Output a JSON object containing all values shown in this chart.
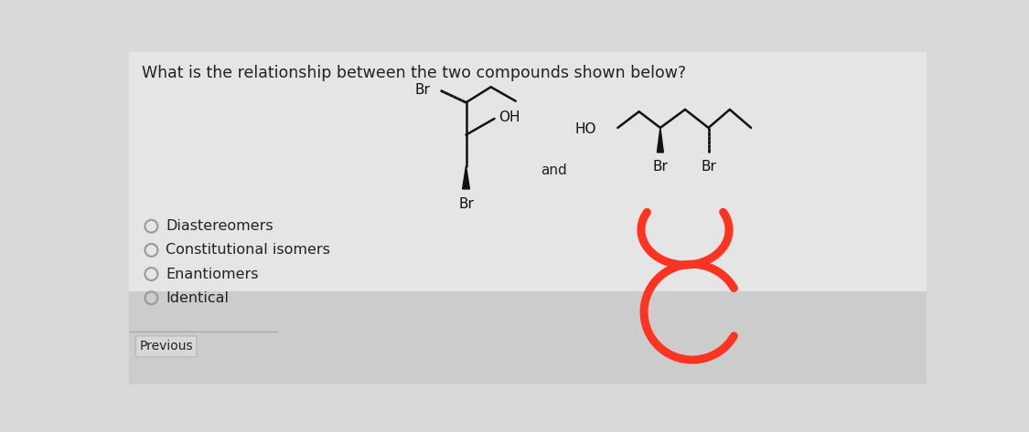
{
  "question": "What is the relationship between the two compounds shown below?",
  "choices": [
    "Diastereomers",
    "Constitutional isomers",
    "Enantiomers",
    "Identical"
  ],
  "and_text": "and",
  "button_text": "Previous",
  "bg_color": "#d9d9d9",
  "upper_bg": "#e8e8e8",
  "lower_bg": "#cccccc",
  "text_color": "#222222",
  "question_fontsize": 12.5,
  "choice_fontsize": 11.5,
  "radio_color": "#999999",
  "mol_color": "#111111",
  "red_color": "#ff3322"
}
